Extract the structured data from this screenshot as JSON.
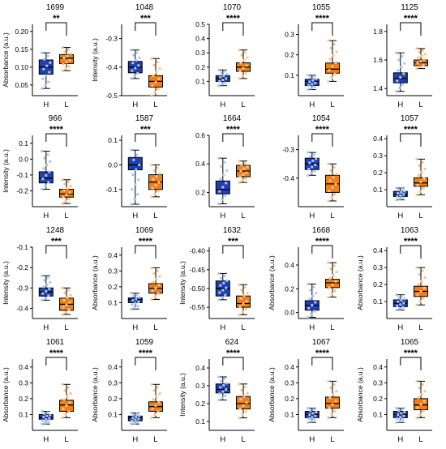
{
  "colors": {
    "H": "#1f3fb3",
    "L": "#f07f1a",
    "H_dot": "#a8c8f0",
    "L_dot": "#f6c48a"
  },
  "chart_data": [
    {
      "type": "box",
      "title": "1699",
      "ylabel": "Absorbance (a.u.)",
      "categories": [
        "H",
        "L"
      ],
      "ylim": [
        0.02,
        0.22
      ],
      "yticks": [
        0.05,
        0.1,
        0.15,
        0.2
      ],
      "tick_labels": [
        "0.05",
        "0.10",
        "0.15",
        "0.20"
      ],
      "significance": "**",
      "H": {
        "min": 0.04,
        "q1": 0.08,
        "median": 0.1,
        "q3": 0.12,
        "max": 0.14
      },
      "L": {
        "min": 0.09,
        "q1": 0.11,
        "median": 0.125,
        "q3": 0.135,
        "max": 0.155
      }
    },
    {
      "type": "box",
      "title": "1048",
      "ylabel": "Intensity (a.u.)",
      "categories": [
        "H",
        "L"
      ],
      "ylim": [
        -0.5,
        -0.25
      ],
      "yticks": [
        -0.3,
        -0.4,
        -0.5
      ],
      "tick_labels": [
        "-0.3",
        "-0.4",
        "-0.5"
      ],
      "significance": "***",
      "H": {
        "min": -0.44,
        "q1": -0.42,
        "median": -0.4,
        "q3": -0.38,
        "max": -0.34
      },
      "L": {
        "min": -0.5,
        "q1": -0.47,
        "median": -0.45,
        "q3": -0.43,
        "max": -0.37
      }
    },
    {
      "type": "box",
      "title": "1070",
      "ylabel": "",
      "categories": [
        "H",
        "L"
      ],
      "ylim": [
        0.0,
        0.5
      ],
      "yticks": [
        0.1,
        0.2,
        0.3,
        0.4,
        0.5
      ],
      "tick_labels": [
        "0.1",
        "0.2",
        "0.3",
        "0.4",
        "0.5"
      ],
      "significance": "****",
      "H": {
        "min": 0.07,
        "q1": 0.1,
        "median": 0.12,
        "q3": 0.14,
        "max": 0.18
      },
      "L": {
        "min": 0.12,
        "q1": 0.17,
        "median": 0.2,
        "q3": 0.23,
        "max": 0.32
      }
    },
    {
      "type": "box",
      "title": "1055",
      "ylabel": "",
      "categories": [
        "H",
        "L"
      ],
      "ylim": [
        0.0,
        0.35
      ],
      "yticks": [
        0.1,
        0.2,
        0.3
      ],
      "tick_labels": [
        "0.1",
        "0.2",
        "0.3"
      ],
      "significance": "****",
      "H": {
        "min": 0.03,
        "q1": 0.05,
        "median": 0.07,
        "q3": 0.08,
        "max": 0.1
      },
      "L": {
        "min": 0.07,
        "q1": 0.11,
        "median": 0.13,
        "q3": 0.16,
        "max": 0.27
      }
    },
    {
      "type": "box",
      "title": "1125",
      "ylabel": "",
      "categories": [
        "H",
        "L"
      ],
      "ylim": [
        1.35,
        1.85
      ],
      "yticks": [
        1.4,
        1.6,
        1.8
      ],
      "tick_labels": [
        "1.4",
        "1.6",
        "1.8"
      ],
      "significance": "****",
      "H": {
        "min": 1.38,
        "q1": 1.44,
        "median": 1.47,
        "q3": 1.51,
        "max": 1.65
      },
      "L": {
        "min": 1.54,
        "q1": 1.56,
        "median": 1.58,
        "q3": 1.6,
        "max": 1.68
      }
    },
    {
      "type": "box",
      "title": "966",
      "ylabel": "Intensity (a.u.)",
      "categories": [
        "H",
        "L"
      ],
      "ylim": [
        -0.3,
        0.15
      ],
      "yticks": [
        -0.2,
        -0.1,
        0.0,
        0.1
      ],
      "tick_labels": [
        "-0.2",
        "-0.1",
        "0.0",
        "0.1"
      ],
      "significance": "****",
      "H": {
        "min": -0.19,
        "q1": -0.15,
        "median": -0.12,
        "q3": -0.08,
        "max": 0.05
      },
      "L": {
        "min": -0.28,
        "q1": -0.24,
        "median": -0.22,
        "q3": -0.19,
        "max": -0.13
      }
    },
    {
      "type": "box",
      "title": "1587",
      "ylabel": "",
      "categories": [
        "H",
        "L"
      ],
      "ylim": [
        -0.17,
        0.12
      ],
      "yticks": [
        -0.1,
        0.0,
        0.1
      ],
      "tick_labels": [
        "-0.1",
        "0.0",
        "0.1"
      ],
      "significance": "***",
      "H": {
        "min": -0.16,
        "q1": -0.02,
        "median": 0.0,
        "q3": 0.03,
        "max": 0.06
      },
      "L": {
        "min": -0.13,
        "q1": -0.1,
        "median": -0.07,
        "q3": -0.04,
        "max": 0.0
      }
    },
    {
      "type": "box",
      "title": "1664",
      "ylabel": "",
      "categories": [
        "H",
        "L"
      ],
      "ylim": [
        0.1,
        0.6
      ],
      "yticks": [
        0.2,
        0.4,
        0.6
      ],
      "tick_labels": [
        "0.2",
        "0.4",
        "0.6"
      ],
      "significance": "****",
      "H": {
        "min": 0.12,
        "q1": 0.19,
        "median": 0.22,
        "q3": 0.28,
        "max": 0.44
      },
      "L": {
        "min": 0.27,
        "q1": 0.31,
        "median": 0.35,
        "q3": 0.39,
        "max": 0.42
      }
    },
    {
      "type": "box",
      "title": "1054",
      "ylabel": "",
      "categories": [
        "H",
        "L"
      ],
      "ylim": [
        -0.5,
        -0.25
      ],
      "yticks": [
        -0.3,
        -0.4
      ],
      "tick_labels": [
        "-0.3",
        "-0.4"
      ],
      "significance": "****",
      "H": {
        "min": -0.39,
        "q1": -0.37,
        "median": -0.35,
        "q3": -0.33,
        "max": -0.31
      },
      "L": {
        "min": -0.48,
        "q1": -0.45,
        "median": -0.42,
        "q3": -0.39,
        "max": -0.35
      }
    },
    {
      "type": "box",
      "title": "1057",
      "ylabel": "",
      "categories": [
        "H",
        "L"
      ],
      "ylim": [
        0.0,
        0.42
      ],
      "yticks": [
        0.1,
        0.2,
        0.3,
        0.4
      ],
      "tick_labels": [
        "0.1",
        "0.2",
        "0.3",
        "0.4"
      ],
      "significance": "****",
      "H": {
        "min": 0.04,
        "q1": 0.06,
        "median": 0.07,
        "q3": 0.09,
        "max": 0.11
      },
      "L": {
        "min": 0.07,
        "q1": 0.12,
        "median": 0.14,
        "q3": 0.17,
        "max": 0.28
      }
    },
    {
      "type": "box",
      "title": "1248",
      "ylabel": "Intensity (a.u.)",
      "categories": [
        "H",
        "L"
      ],
      "ylim": [
        -0.45,
        -0.1
      ],
      "yticks": [
        -0.1,
        -0.2,
        -0.3,
        -0.4
      ],
      "tick_labels": [
        "-0.1",
        "-0.2",
        "-0.3",
        "-0.4"
      ],
      "significance": "***",
      "H": {
        "min": -0.36,
        "q1": -0.34,
        "median": -0.32,
        "q3": -0.3,
        "max": -0.24
      },
      "L": {
        "min": -0.43,
        "q1": -0.41,
        "median": -0.38,
        "q3": -0.35,
        "max": -0.3
      }
    },
    {
      "type": "box",
      "title": "1069",
      "ylabel": "Absorbance (a.u.)",
      "categories": [
        "H",
        "L"
      ],
      "ylim": [
        0.0,
        0.45
      ],
      "yticks": [
        0.1,
        0.2,
        0.3,
        0.4
      ],
      "tick_labels": [
        "0.1",
        "0.2",
        "0.3",
        "0.4"
      ],
      "significance": "****",
      "H": {
        "min": 0.06,
        "q1": 0.1,
        "median": 0.12,
        "q3": 0.13,
        "max": 0.16
      },
      "L": {
        "min": 0.12,
        "q1": 0.16,
        "median": 0.19,
        "q3": 0.22,
        "max": 0.32
      }
    },
    {
      "type": "box",
      "title": "1632",
      "ylabel": "Intensity (a.u.)",
      "categories": [
        "H",
        "L"
      ],
      "ylim": [
        -0.58,
        -0.39
      ],
      "yticks": [
        -0.4,
        -0.45,
        -0.5,
        -0.55
      ],
      "tick_labels": [
        "-0.40",
        "-0.45",
        "-0.50",
        "-0.55"
      ],
      "significance": "***",
      "H": {
        "min": -0.53,
        "q1": -0.52,
        "median": -0.5,
        "q3": -0.48,
        "max": -0.46
      },
      "L": {
        "min": -0.57,
        "q1": -0.55,
        "median": -0.54,
        "q3": -0.52,
        "max": -0.49
      }
    },
    {
      "type": "box",
      "title": "1668",
      "ylabel": "Absorbance (a.u.)",
      "categories": [
        "H",
        "L"
      ],
      "ylim": [
        -0.05,
        0.55
      ],
      "yticks": [
        0.0,
        0.2,
        0.4
      ],
      "tick_labels": [
        "0.0",
        "0.2",
        "0.4"
      ],
      "significance": "****",
      "H": {
        "min": -0.04,
        "q1": 0.02,
        "median": 0.06,
        "q3": 0.1,
        "max": 0.24
      },
      "L": {
        "min": 0.13,
        "q1": 0.21,
        "median": 0.25,
        "q3": 0.28,
        "max": 0.42
      }
    },
    {
      "type": "box",
      "title": "1063",
      "ylabel": "Absorbance (a.u.)",
      "categories": [
        "H",
        "L"
      ],
      "ylim": [
        0.0,
        0.42
      ],
      "yticks": [
        0.1,
        0.2,
        0.3,
        0.4
      ],
      "tick_labels": [
        "0.1",
        "0.2",
        "0.3",
        "0.4"
      ],
      "significance": "****",
      "H": {
        "min": 0.05,
        "q1": 0.07,
        "median": 0.09,
        "q3": 0.11,
        "max": 0.14
      },
      "L": {
        "min": 0.08,
        "q1": 0.13,
        "median": 0.16,
        "q3": 0.19,
        "max": 0.3
      }
    },
    {
      "type": "box",
      "title": "1061",
      "ylabel": "Absorbance (a.u.)",
      "categories": [
        "H",
        "L"
      ],
      "ylim": [
        0.0,
        0.45
      ],
      "yticks": [
        0.1,
        0.2,
        0.3,
        0.4
      ],
      "tick_labels": [
        "0.1",
        "0.2",
        "0.3",
        "0.4"
      ],
      "significance": "****",
      "H": {
        "min": 0.04,
        "q1": 0.07,
        "median": 0.08,
        "q3": 0.1,
        "max": 0.12
      },
      "L": {
        "min": 0.08,
        "q1": 0.12,
        "median": 0.16,
        "q3": 0.19,
        "max": 0.29
      }
    },
    {
      "type": "box",
      "title": "1059",
      "ylabel": "Absorbance (a.u.)",
      "categories": [
        "H",
        "L"
      ],
      "ylim": [
        0.0,
        0.45
      ],
      "yticks": [
        0.1,
        0.2,
        0.3,
        0.4
      ],
      "tick_labels": [
        "0.1",
        "0.2",
        "0.3",
        "0.4"
      ],
      "significance": "****",
      "H": {
        "min": 0.04,
        "q1": 0.06,
        "median": 0.08,
        "q3": 0.09,
        "max": 0.11
      },
      "L": {
        "min": 0.08,
        "q1": 0.12,
        "median": 0.15,
        "q3": 0.18,
        "max": 0.29
      }
    },
    {
      "type": "box",
      "title": "624",
      "ylabel": "Intensity (a.u.)",
      "categories": [
        "H",
        "L"
      ],
      "ylim": [
        0.05,
        0.45
      ],
      "yticks": [
        0.1,
        0.2,
        0.3,
        0.4
      ],
      "tick_labels": [
        "0.1",
        "0.2",
        "0.3",
        "0.4"
      ],
      "significance": "****",
      "H": {
        "min": 0.22,
        "q1": 0.26,
        "median": 0.28,
        "q3": 0.31,
        "max": 0.35
      },
      "L": {
        "min": 0.12,
        "q1": 0.17,
        "median": 0.2,
        "q3": 0.24,
        "max": 0.31
      }
    },
    {
      "type": "box",
      "title": "1067",
      "ylabel": "Absorbance (a.u.)",
      "categories": [
        "H",
        "L"
      ],
      "ylim": [
        0.0,
        0.45
      ],
      "yticks": [
        0.1,
        0.2,
        0.3,
        0.4
      ],
      "tick_labels": [
        "0.1",
        "0.2",
        "0.3",
        "0.4"
      ],
      "significance": "****",
      "H": {
        "min": 0.05,
        "q1": 0.08,
        "median": 0.1,
        "q3": 0.12,
        "max": 0.14
      },
      "L": {
        "min": 0.08,
        "q1": 0.14,
        "median": 0.17,
        "q3": 0.21,
        "max": 0.31
      }
    },
    {
      "type": "box",
      "title": "1065",
      "ylabel": "Absorbance (a.u.)",
      "categories": [
        "H",
        "L"
      ],
      "ylim": [
        0.0,
        0.45
      ],
      "yticks": [
        0.1,
        0.2,
        0.3,
        0.4
      ],
      "tick_labels": [
        "0.1",
        "0.2",
        "0.3",
        "0.4"
      ],
      "significance": "****",
      "H": {
        "min": 0.05,
        "q1": 0.08,
        "median": 0.1,
        "q3": 0.12,
        "max": 0.14
      },
      "L": {
        "min": 0.08,
        "q1": 0.13,
        "median": 0.16,
        "q3": 0.2,
        "max": 0.31
      }
    }
  ]
}
